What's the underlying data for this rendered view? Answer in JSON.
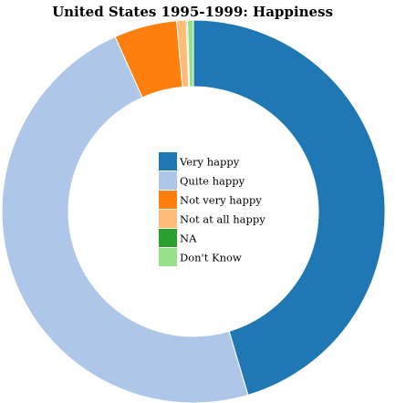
{
  "chart_data": {
    "type": "pie",
    "title": "United States 1995-1999: Happiness",
    "donut": true,
    "legend_position": "center",
    "categories": [
      "Very happy",
      "Quite happy",
      "Not very happy",
      "Not at all happy",
      "NA",
      "Don't Know"
    ],
    "values": [
      45.4,
      47.9,
      5.3,
      0.8,
      0.1,
      0.5
    ],
    "colors": [
      "#1f77b4",
      "#aec7e8",
      "#ff7f0e",
      "#ffbb78",
      "#2ca02c",
      "#98df8a"
    ]
  }
}
